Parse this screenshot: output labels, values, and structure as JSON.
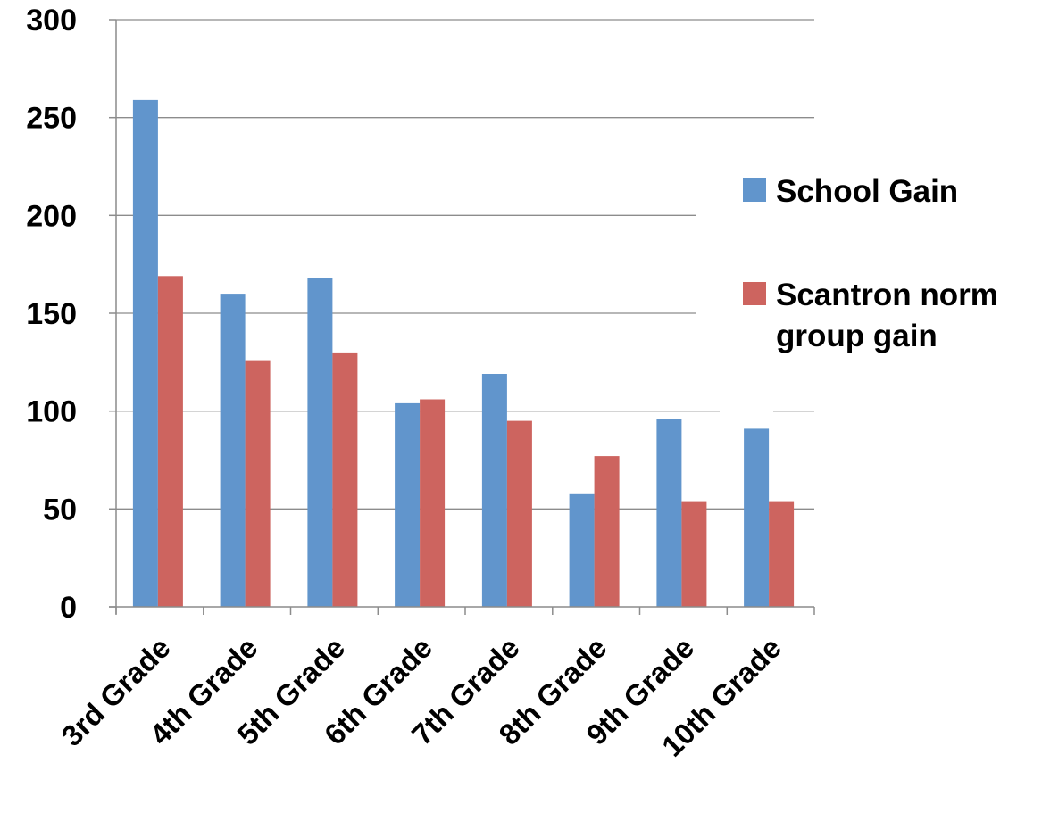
{
  "chart_data": {
    "type": "bar",
    "title": "",
    "xlabel": "",
    "ylabel": "",
    "categories": [
      "3rd Grade",
      "4th Grade",
      "5th Grade",
      "6th Grade",
      "7th Grade",
      "8th Grade",
      "9th Grade",
      "10th Grade"
    ],
    "series": [
      {
        "name": "School Gain",
        "color": "#6195cc",
        "values": [
          259,
          160,
          168,
          104,
          119,
          58,
          96,
          91
        ]
      },
      {
        "name": "Scantron norm group gain",
        "color": "#cd645f",
        "values": [
          169,
          126,
          130,
          106,
          95,
          77,
          54,
          54
        ]
      }
    ],
    "ylim": [
      0,
      300
    ],
    "yticks": [
      0,
      50,
      100,
      150,
      200,
      250,
      300
    ],
    "grid": true,
    "legend": "right"
  }
}
